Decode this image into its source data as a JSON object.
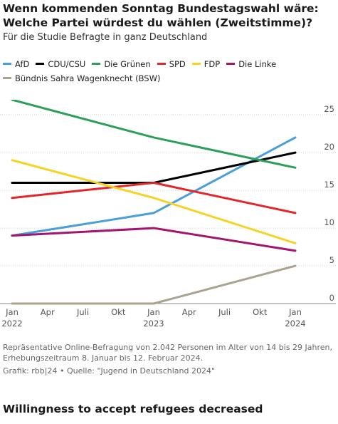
{
  "header": {
    "title": "Wenn kommenden Sonntag Bundestagswahl wäre: Welche Partei würdest du wählen (Zweitstimme)?",
    "subtitle": "Für die Studie Befragte in ganz Deutschland"
  },
  "footer": {
    "note": "Repräsentative Online-Befragung von 2.042 Personen im Alter von 14 bis 29 Jahren, Erhebungszeitraum 8. Januar bis 12. Februar 2024.",
    "credit": "Grafik: rbb|24 • Quelle: \"Jugend in Deutschland 2024\""
  },
  "next_section": {
    "title": "Willingness to accept refugees decreased"
  },
  "chart_data": {
    "type": "line",
    "title": "Wenn kommenden Sonntag Bundestagswahl wäre: Welche Partei würdest du wählen (Zweitstimme)?",
    "subtitle": "Für die Studie Befragte in ganz Deutschland",
    "xlabel": "",
    "ylabel": "",
    "x": [
      "2022-01",
      "2023-01",
      "2024-01"
    ],
    "x_ticks": [
      {
        "label": "Jan",
        "sub": "2022"
      },
      {
        "label": "Apr",
        "sub": ""
      },
      {
        "label": "Juli",
        "sub": ""
      },
      {
        "label": "Okt",
        "sub": ""
      },
      {
        "label": "Jan",
        "sub": "2023"
      },
      {
        "label": "Apr",
        "sub": ""
      },
      {
        "label": "Juli",
        "sub": ""
      },
      {
        "label": "Okt",
        "sub": ""
      },
      {
        "label": "Jan",
        "sub": "2024"
      }
    ],
    "y_ticks": [
      0,
      5,
      10,
      15,
      20,
      25
    ],
    "ylim": [
      0,
      27
    ],
    "grid": true,
    "legend_position": "top",
    "series": [
      {
        "name": "AfD",
        "color": "#4a9fd8",
        "values": [
          9,
          12,
          22
        ]
      },
      {
        "name": "CDU/CSU",
        "color": "#000000",
        "values": [
          16,
          16,
          20
        ]
      },
      {
        "name": "Die Grünen",
        "color": "#2e9e5b",
        "values": [
          27,
          22,
          18
        ]
      },
      {
        "name": "SPD",
        "color": "#e3262b",
        "values": [
          14,
          16,
          12
        ]
      },
      {
        "name": "FDP",
        "color": "#f5d327",
        "values": [
          19,
          14,
          8
        ]
      },
      {
        "name": "Die Linke",
        "color": "#a3166f",
        "values": [
          9,
          10,
          7
        ]
      },
      {
        "name": "Bündnis Sahra Wagenknecht (BSW)",
        "color": "#aba392",
        "values": [
          0,
          0,
          5
        ]
      }
    ]
  }
}
